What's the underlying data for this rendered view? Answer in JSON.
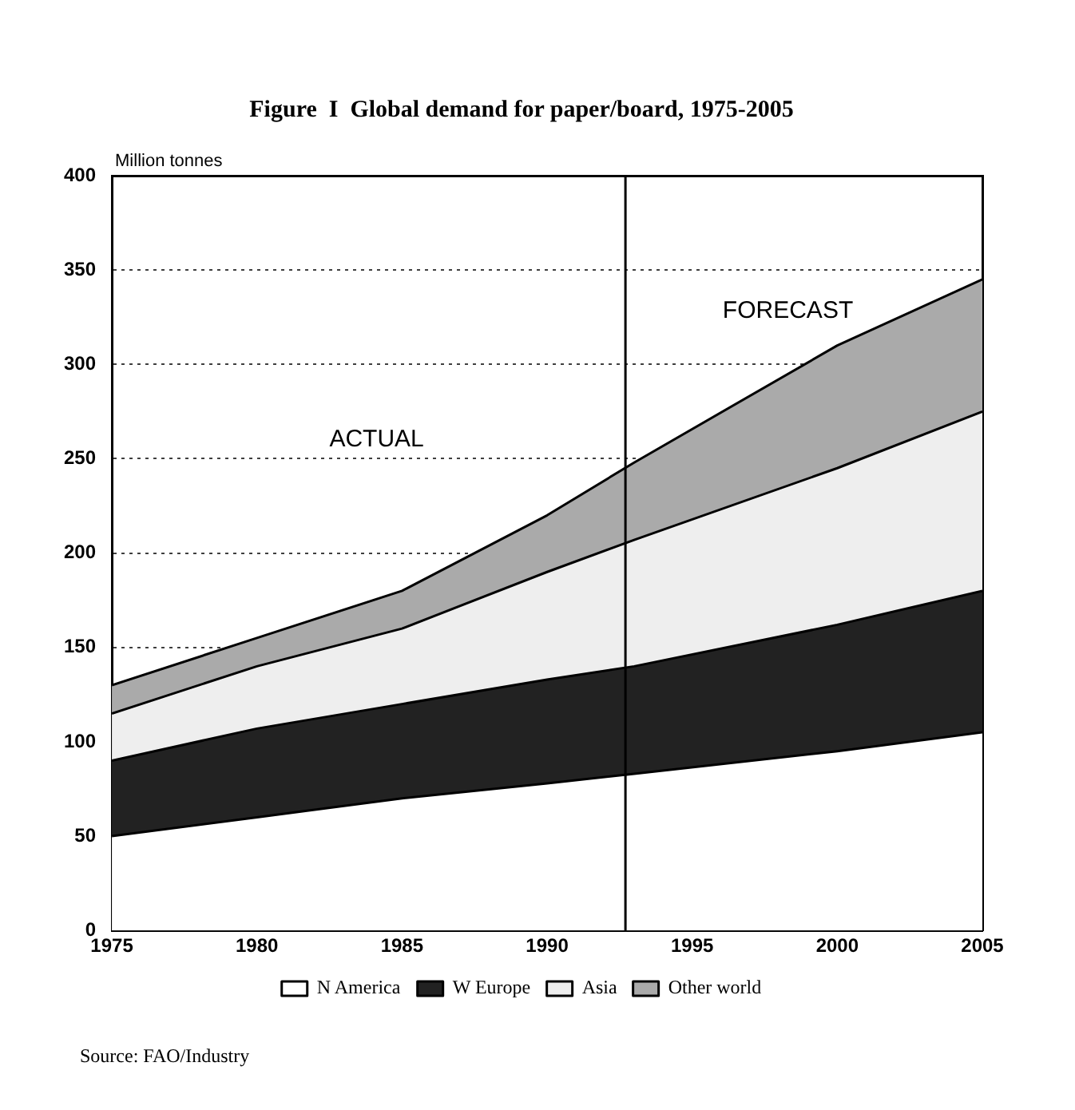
{
  "chart_data": {
    "type": "area",
    "title": "Figure  I  Global demand for paper/board, 1975-2005",
    "ylabel": "Million tonnes",
    "x": [
      1975,
      1980,
      1985,
      1990,
      1993,
      2000,
      2005
    ],
    "stacked": true,
    "series": [
      {
        "name": "N America",
        "color": "#ffffff",
        "values": [
          50,
          60,
          70,
          78,
          83,
          95,
          105
        ]
      },
      {
        "name": "W Europe",
        "color": "#222222",
        "values": [
          40,
          47,
          50,
          55,
          57,
          67,
          75
        ]
      },
      {
        "name": "Asia",
        "color": "#eeeeee",
        "values": [
          25,
          33,
          40,
          57,
          67,
          83,
          95
        ]
      },
      {
        "name": "Other world",
        "color": "#aaaaaa",
        "values": [
          15,
          15,
          20,
          30,
          41,
          65,
          70
        ]
      }
    ],
    "xlim": [
      1975,
      2005
    ],
    "xticks": [
      1975,
      1980,
      1985,
      1990,
      1995,
      2000,
      2005
    ],
    "ylim": [
      0,
      400
    ],
    "yticks": [
      0,
      50,
      100,
      150,
      200,
      250,
      300,
      350,
      400
    ],
    "grid": "y",
    "legend": "bottom",
    "ref_lines": [
      {
        "axis": "x",
        "value": 1992.7,
        "label": null,
        "color": "#000000"
      }
    ],
    "annotations": [
      "ACTUAL",
      "FORECAST",
      "Source: FAO/Industry"
    ]
  }
}
